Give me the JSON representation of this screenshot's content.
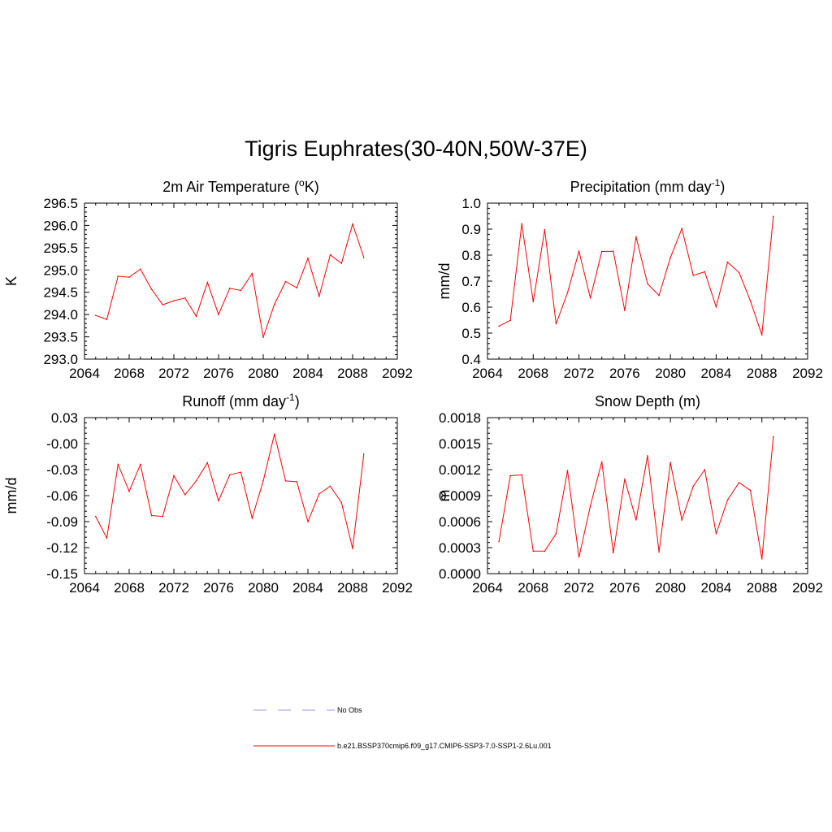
{
  "page_title": "Tigris Euphrates(30-40N,50W-37E)",
  "colors": {
    "model_line": "#ff0000",
    "obs_line": "#9999dd",
    "frame": "#000000"
  },
  "legend": [
    {
      "label": "No Obs",
      "style": "dashed",
      "color": "#9999dd"
    },
    {
      "label": "b.e21.BSSP370cmip6.f09_g17.CMIP6-SSP3-7.0-SSP1-2.6Lu.001",
      "style": "solid",
      "color": "#ff0000"
    }
  ],
  "chart_data": [
    {
      "type": "line",
      "title": "2m Air Temperature (",
      "title_sup": "o",
      "title_after": "K)",
      "ylabel": "K",
      "xlim": [
        2064,
        2092
      ],
      "ylim": [
        293.0,
        296.5
      ],
      "xticks": [
        "2064",
        "2068",
        "2072",
        "2076",
        "2080",
        "2084",
        "2088",
        "2092"
      ],
      "yticks": [
        "293.0",
        "293.5",
        "294.0",
        "294.5",
        "295.0",
        "295.5",
        "296.0",
        "296.5"
      ],
      "x": [
        2065,
        2066,
        2067,
        2068,
        2069,
        2070,
        2071,
        2072,
        2073,
        2074,
        2075,
        2076,
        2077,
        2078,
        2079,
        2080,
        2081,
        2082,
        2083,
        2084,
        2085,
        2086,
        2087,
        2088,
        2089
      ],
      "series": [
        {
          "values": [
            293.98,
            293.89,
            294.86,
            294.84,
            295.02,
            294.57,
            294.22,
            294.31,
            294.37,
            293.96,
            294.72,
            294.0,
            294.59,
            294.54,
            294.92,
            293.49,
            294.23,
            294.74,
            294.6,
            295.26,
            294.41,
            295.34,
            295.15,
            296.03,
            295.28
          ]
        }
      ]
    },
    {
      "type": "line",
      "title": "Precipitation (mm day",
      "title_sup": "-1",
      "title_after": ")",
      "ylabel": "mm/d",
      "xlim": [
        2064,
        2092
      ],
      "ylim": [
        0.4,
        1.0
      ],
      "xticks": [
        "2064",
        "2068",
        "2072",
        "2076",
        "2080",
        "2084",
        "2088",
        "2092"
      ],
      "yticks": [
        "0.4",
        "0.5",
        "0.6",
        "0.7",
        "0.8",
        "0.9",
        "1.0"
      ],
      "x": [
        2065,
        2066,
        2067,
        2068,
        2069,
        2070,
        2071,
        2072,
        2073,
        2074,
        2075,
        2076,
        2077,
        2078,
        2079,
        2080,
        2081,
        2082,
        2083,
        2084,
        2085,
        2086,
        2087,
        2088,
        2089
      ],
      "series": [
        {
          "values": [
            0.527,
            0.549,
            0.92,
            0.621,
            0.898,
            0.536,
            0.655,
            0.815,
            0.635,
            0.814,
            0.815,
            0.587,
            0.87,
            0.69,
            0.645,
            0.79,
            0.902,
            0.722,
            0.736,
            0.601,
            0.773,
            0.733,
            0.624,
            0.493,
            0.949
          ]
        }
      ]
    },
    {
      "type": "line",
      "title": "Runoff (mm day",
      "title_sup": "-1",
      "title_after": ")",
      "ylabel": "mm/d",
      "xlim": [
        2064,
        2092
      ],
      "ylim": [
        -0.15,
        0.03
      ],
      "xticks": [
        "2064",
        "2068",
        "2072",
        "2076",
        "2080",
        "2084",
        "2088",
        "2092"
      ],
      "yticks": [
        "-0.15",
        "-0.12",
        "-0.09",
        "-0.06",
        "-0.03",
        "-0.00",
        "0.03"
      ],
      "x": [
        2065,
        2066,
        2067,
        2068,
        2069,
        2070,
        2071,
        2072,
        2073,
        2074,
        2075,
        2076,
        2077,
        2078,
        2079,
        2080,
        2081,
        2082,
        2083,
        2084,
        2085,
        2086,
        2087,
        2088,
        2089
      ],
      "series": [
        {
          "values": [
            -0.084,
            -0.109,
            -0.024,
            -0.055,
            -0.024,
            -0.083,
            -0.084,
            -0.037,
            -0.059,
            -0.043,
            -0.022,
            -0.066,
            -0.036,
            -0.033,
            -0.086,
            -0.043,
            0.011,
            -0.043,
            -0.044,
            -0.09,
            -0.058,
            -0.049,
            -0.068,
            -0.121,
            -0.012
          ]
        }
      ]
    },
    {
      "type": "line",
      "title": "Snow Depth (m)",
      "title_sup": "",
      "title_after": "",
      "ylabel": "m",
      "xlim": [
        2064,
        2092
      ],
      "ylim": [
        0.0,
        0.0018
      ],
      "xticks": [
        "2064",
        "2068",
        "2072",
        "2076",
        "2080",
        "2084",
        "2088",
        "2092"
      ],
      "yticks": [
        "0.0000",
        "0.0003",
        "0.0006",
        "0.0009",
        "0.0012",
        "0.0015",
        "0.0018"
      ],
      "x": [
        2065,
        2066,
        2067,
        2068,
        2069,
        2070,
        2071,
        2072,
        2073,
        2074,
        2075,
        2076,
        2077,
        2078,
        2079,
        2080,
        2081,
        2082,
        2083,
        2084,
        2085,
        2086,
        2087,
        2088,
        2089
      ],
      "series": [
        {
          "values": [
            0.00037,
            0.00113,
            0.00114,
            0.00026,
            0.00026,
            0.00046,
            0.00119,
            0.00019,
            0.00078,
            0.00129,
            0.00024,
            0.00109,
            0.00062,
            0.00136,
            0.00025,
            0.00128,
            0.00062,
            0.00101,
            0.0012,
            0.00046,
            0.00085,
            0.00105,
            0.00096,
            0.00017,
            0.00158
          ]
        }
      ]
    }
  ]
}
